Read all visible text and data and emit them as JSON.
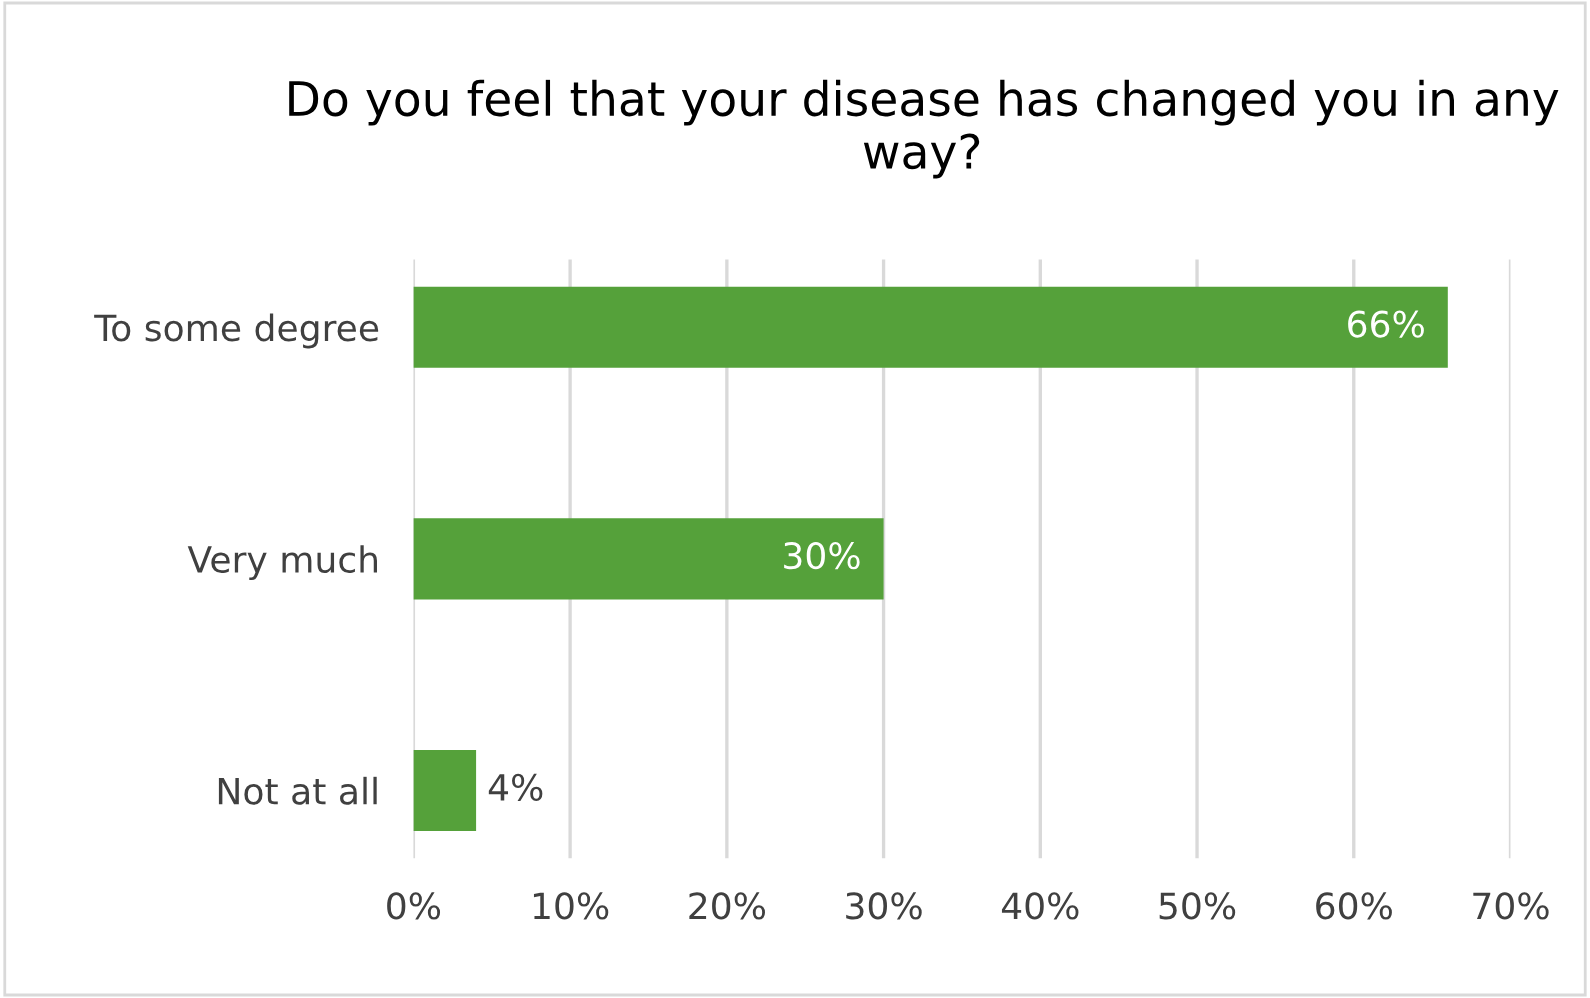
{
  "chart_data": {
    "type": "bar",
    "orientation": "horizontal",
    "title": "Do you feel that your disease has changed you in any way?",
    "categories": [
      "To some degree",
      "Very much",
      "Not at all"
    ],
    "values": [
      66,
      30,
      4
    ],
    "value_labels": [
      "66%",
      "30%",
      "4%"
    ],
    "color": "#55a13a",
    "xlim": [
      0,
      70
    ],
    "xticks": [
      {
        "value": 0,
        "label": "0%"
      },
      {
        "value": 10,
        "label": "10%"
      },
      {
        "value": 20,
        "label": "20%"
      },
      {
        "value": 30,
        "label": "30%"
      },
      {
        "value": 40,
        "label": "40%"
      },
      {
        "value": 50,
        "label": "50%"
      },
      {
        "value": 60,
        "label": "60%"
      },
      {
        "value": 70,
        "label": "70%"
      }
    ],
    "grid": "x",
    "legend": false
  }
}
